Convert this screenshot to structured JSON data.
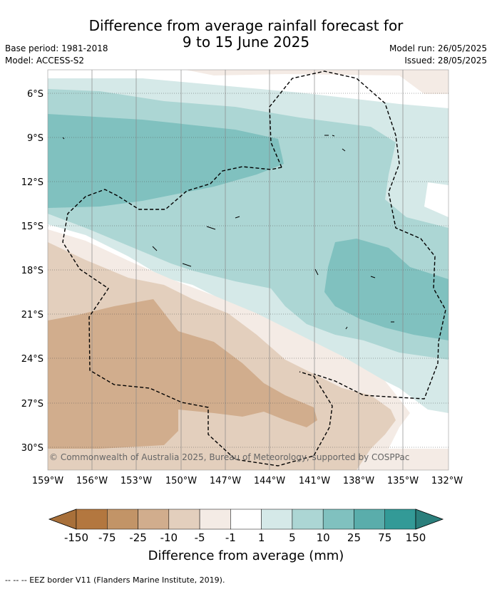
{
  "header": {
    "title_line1": "Difference from average rainfall forecast for",
    "title_line2": "9 to 15 June 2025",
    "base_period": "Base period: 1981-2018",
    "model": "Model: ACCESS-S2",
    "model_run": "Model run: 26/05/2025",
    "issued": "Issued: 28/05/2025"
  },
  "map": {
    "copyright": "© Commonwealth of Australia 2025, Bureau of Meteorology, supported by COSPPac",
    "lat_labels": [
      "6°S",
      "9°S",
      "12°S",
      "15°S",
      "18°S",
      "21°S",
      "24°S",
      "27°S",
      "30°S"
    ],
    "lon_labels": [
      "159°W",
      "156°W",
      "153°W",
      "150°W",
      "147°W",
      "144°W",
      "141°W",
      "138°W",
      "135°W",
      "132°W"
    ]
  },
  "colorbar": {
    "title": "Difference from average (mm)",
    "tick_labels": [
      "-150",
      "-75",
      "-25",
      "-10",
      "-5",
      "-1",
      "1",
      "5",
      "10",
      "25",
      "75",
      "150"
    ],
    "colors": [
      "#a8703a",
      "#b3773f",
      "#c29467",
      "#d1ad8d",
      "#e3cfbd",
      "#f4ebe5",
      "#ffffff",
      "#d5e9e8",
      "#acd6d4",
      "#80c1bf",
      "#5aadab",
      "#339a97",
      "#2b7f7c"
    ]
  },
  "footnote": "-- -- -- EEZ border V11 (Flanders Marine Institute, 2019)."
}
